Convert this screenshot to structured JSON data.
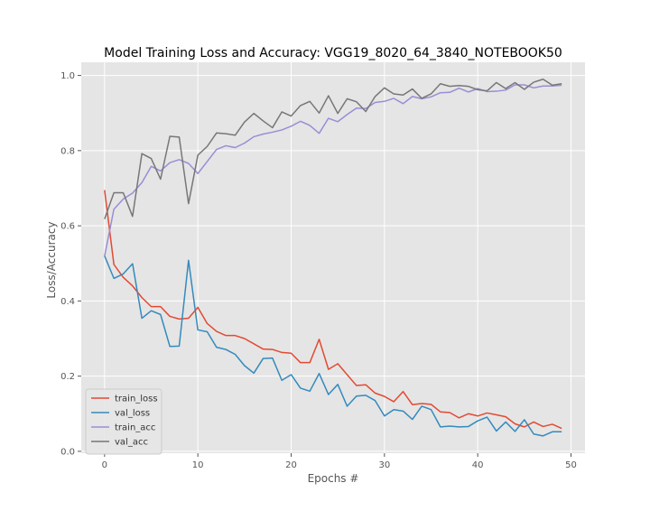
{
  "chart_data": {
    "type": "line",
    "title": "Model Training Loss and Accuracy: VGG19_8020_64_3840_NOTEBOOK50",
    "xlabel": "Epochs #",
    "ylabel": "Loss/Accuracy",
    "xlim": [
      -2.5,
      51.5
    ],
    "ylim": [
      -0.005,
      1.035
    ],
    "xticks": [
      0,
      10,
      20,
      30,
      40,
      50
    ],
    "yticks": [
      0.0,
      0.2,
      0.4,
      0.6,
      0.8,
      1.0
    ],
    "xtick_labels": [
      "0",
      "10",
      "20",
      "30",
      "40",
      "50"
    ],
    "ytick_labels": [
      "0.0",
      "0.2",
      "0.4",
      "0.6",
      "0.8",
      "1.0"
    ],
    "grid": true,
    "legend_position": "lower-left",
    "style": {
      "plot_background": "#e5e5e5",
      "grid_color": "#ffffff"
    },
    "series": [
      {
        "name": "train_loss",
        "color": "#e24a33",
        "values": [
          0.695,
          0.497,
          0.463,
          0.44,
          0.409,
          0.385,
          0.385,
          0.359,
          0.352,
          0.354,
          0.383,
          0.34,
          0.319,
          0.308,
          0.308,
          0.3,
          0.286,
          0.272,
          0.271,
          0.263,
          0.261,
          0.236,
          0.236,
          0.298,
          0.218,
          0.233,
          0.204,
          0.175,
          0.177,
          0.155,
          0.146,
          0.132,
          0.159,
          0.124,
          0.127,
          0.125,
          0.105,
          0.103,
          0.089,
          0.1,
          0.094,
          0.102,
          0.097,
          0.092,
          0.073,
          0.065,
          0.078,
          0.066,
          0.072,
          0.061
        ]
      },
      {
        "name": "val_loss",
        "color": "#348abd",
        "values": [
          0.52,
          0.46,
          0.472,
          0.499,
          0.354,
          0.374,
          0.364,
          0.279,
          0.28,
          0.508,
          0.323,
          0.318,
          0.277,
          0.271,
          0.258,
          0.228,
          0.208,
          0.247,
          0.248,
          0.189,
          0.204,
          0.168,
          0.16,
          0.207,
          0.151,
          0.178,
          0.12,
          0.147,
          0.149,
          0.135,
          0.094,
          0.111,
          0.107,
          0.085,
          0.12,
          0.111,
          0.065,
          0.067,
          0.065,
          0.066,
          0.081,
          0.091,
          0.054,
          0.078,
          0.053,
          0.084,
          0.046,
          0.041,
          0.052,
          0.052
        ]
      },
      {
        "name": "train_acc",
        "color": "#988ed5",
        "values": [
          0.519,
          0.644,
          0.671,
          0.687,
          0.715,
          0.758,
          0.746,
          0.768,
          0.776,
          0.766,
          0.739,
          0.771,
          0.803,
          0.813,
          0.808,
          0.82,
          0.837,
          0.844,
          0.849,
          0.855,
          0.865,
          0.878,
          0.867,
          0.846,
          0.886,
          0.877,
          0.896,
          0.913,
          0.912,
          0.928,
          0.931,
          0.939,
          0.925,
          0.944,
          0.938,
          0.943,
          0.954,
          0.955,
          0.966,
          0.956,
          0.965,
          0.957,
          0.958,
          0.961,
          0.975,
          0.975,
          0.967,
          0.972,
          0.972,
          0.974
        ]
      },
      {
        "name": "val_acc",
        "color": "#777777",
        "values": [
          0.618,
          0.688,
          0.688,
          0.625,
          0.792,
          0.779,
          0.724,
          0.838,
          0.836,
          0.659,
          0.788,
          0.811,
          0.847,
          0.845,
          0.841,
          0.876,
          0.899,
          0.879,
          0.861,
          0.903,
          0.892,
          0.92,
          0.931,
          0.9,
          0.946,
          0.899,
          0.938,
          0.93,
          0.904,
          0.944,
          0.967,
          0.951,
          0.948,
          0.964,
          0.939,
          0.951,
          0.978,
          0.971,
          0.973,
          0.971,
          0.962,
          0.959,
          0.981,
          0.965,
          0.981,
          0.963,
          0.982,
          0.99,
          0.974,
          0.978
        ]
      }
    ]
  }
}
